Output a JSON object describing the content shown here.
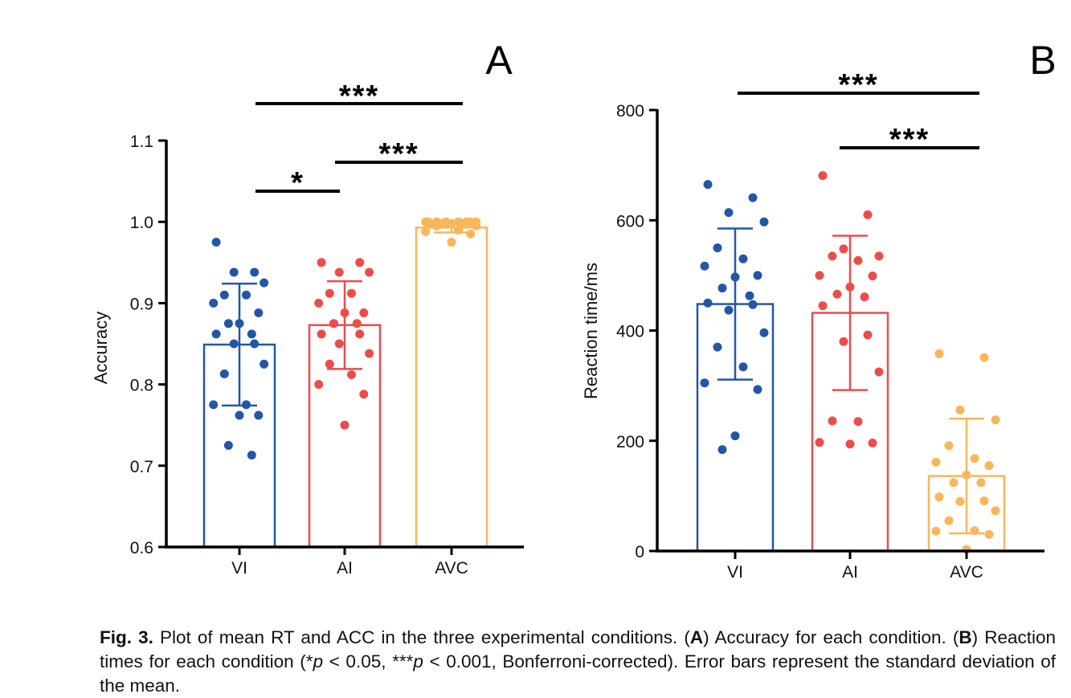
{
  "chart_data": [
    {
      "type": "bar",
      "panel": "A",
      "title": "",
      "xlabel": "",
      "ylabel": "Accuracy",
      "ylim": [
        0.6,
        1.1
      ],
      "yticks": [
        "0.6",
        "0.7",
        "0.8",
        "0.9",
        "1.0",
        "1.1"
      ],
      "categories": [
        "VI",
        "AI",
        "AVC"
      ],
      "colors": [
        "#2456a6",
        "#ee4b4b",
        "#f9b65a"
      ],
      "means": [
        0.849,
        0.873,
        0.993
      ],
      "sd": [
        0.075,
        0.054,
        0.006
      ],
      "points": [
        [
          0.975,
          0.938,
          0.938,
          0.925,
          0.91,
          0.91,
          0.9,
          0.888,
          0.875,
          0.875,
          0.862,
          0.862,
          0.85,
          0.85,
          0.825,
          0.813,
          0.775,
          0.775,
          0.762,
          0.762,
          0.725,
          0.713
        ],
        [
          0.95,
          0.95,
          0.938,
          0.938,
          0.912,
          0.912,
          0.9,
          0.888,
          0.888,
          0.875,
          0.875,
          0.862,
          0.862,
          0.85,
          0.838,
          0.825,
          0.812,
          0.8,
          0.788,
          0.75
        ],
        [
          1.0,
          1.0,
          1.0,
          1.0,
          1.0,
          1.0,
          1.0,
          1.0,
          0.998,
          0.998,
          0.998,
          0.997,
          0.997,
          0.997,
          0.995,
          0.995,
          0.99,
          0.988,
          0.985,
          0.975
        ]
      ],
      "significance": [
        {
          "from": "VI",
          "to": "AI",
          "label": "*"
        },
        {
          "from": "AI",
          "to": "AVC",
          "label": "***"
        },
        {
          "from": "VI",
          "to": "AVC",
          "label": "***"
        }
      ]
    },
    {
      "type": "bar",
      "panel": "B",
      "title": "",
      "xlabel": "",
      "ylabel": "Reaction time/ms",
      "ylim": [
        0,
        800
      ],
      "yticks": [
        "0",
        "200",
        "400",
        "600",
        "800"
      ],
      "categories": [
        "VI",
        "AI",
        "AVC"
      ],
      "colors": [
        "#2456a6",
        "#ee4b4b",
        "#f9b65a"
      ],
      "means": [
        448,
        432,
        136
      ],
      "sd": [
        137,
        140,
        104
      ],
      "points": [
        [
          665,
          641,
          614,
          597,
          550,
          530,
          517,
          500,
          497,
          477,
          463,
          450,
          447,
          437,
          396,
          370,
          334,
          305,
          293,
          209,
          184
        ],
        [
          681,
          610,
          548,
          535,
          535,
          527,
          500,
          499,
          479,
          466,
          461,
          445,
          392,
          380,
          325,
          236,
          235,
          197,
          196,
          194
        ],
        [
          358,
          351,
          256,
          238,
          191,
          168,
          161,
          155,
          138,
          124,
          124,
          98,
          91,
          90,
          73,
          55,
          37,
          36,
          30,
          3
        ]
      ],
      "significance": [
        {
          "from": "AI",
          "to": "AVC",
          "label": "***"
        },
        {
          "from": "VI",
          "to": "AVC",
          "label": "***"
        }
      ]
    }
  ],
  "caption": {
    "lead": "Fig. 3.",
    "text1": " Plot of mean RT and ACC in the three experimental conditions. (",
    "boldA": "A",
    "text2": ") Accuracy for each condition. (",
    "boldB": "B",
    "text3": ") Reaction times for each condition (*",
    "p1": "p",
    "text4": " < 0.05, ***",
    "p2": "p",
    "text5": " < 0.001, Bonferroni-corrected). Error bars represent the standard deviation of the mean."
  }
}
